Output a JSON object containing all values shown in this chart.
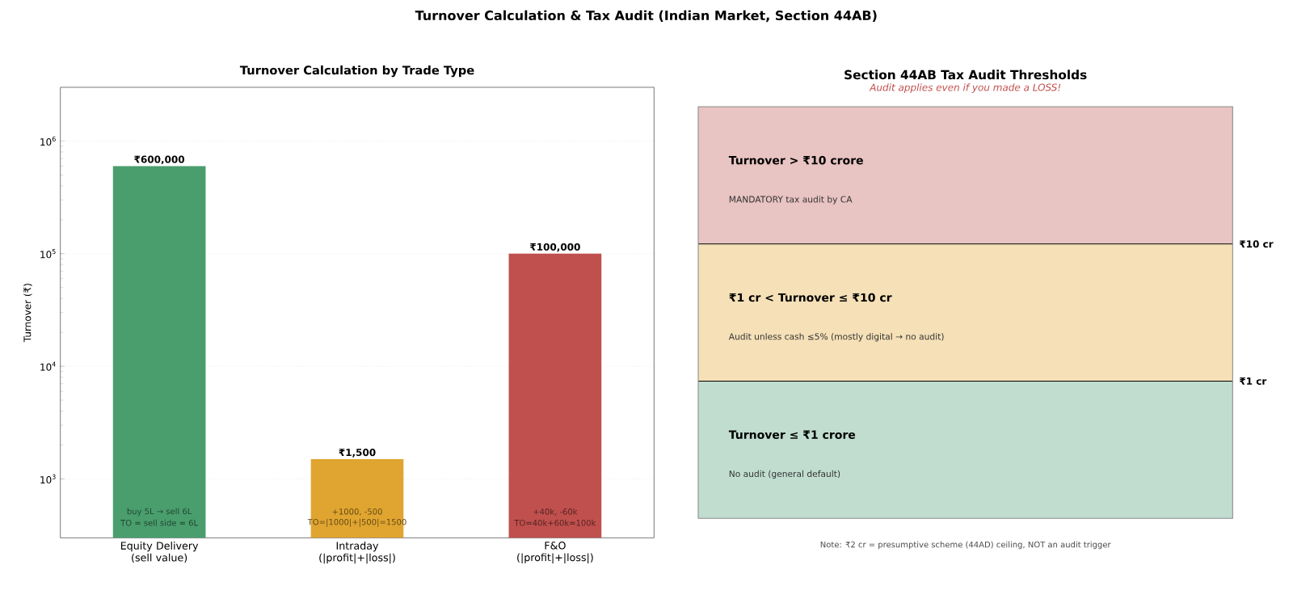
{
  "chart_data": [
    {
      "type": "bar",
      "title": "Turnover Calculation & Tax Audit (Indian Market, Section 44AB)",
      "subtitle": "Turnover Calculation by Trade Type",
      "ylabel": "Turnover (₹)",
      "categories": [
        "Equity Delivery (sell value)",
        "Intraday (|profit|+|loss|)",
        "F&O (|profit|+|loss|)"
      ],
      "values": [
        600000,
        1500,
        100000
      ],
      "colors": [
        "#4a9e6e",
        "#e0a530",
        "#c0504d"
      ],
      "value_labels": [
        "₹600,000",
        "₹1,500",
        "₹100,000"
      ],
      "annotations": [
        "buy 5L → sell 6L",
        "TO = sell side = 6L",
        "+1000, -500",
        "TO=|1000|+|500|=1500",
        "+40k, -60k",
        "TO=40k+60k=100k"
      ],
      "log": true,
      "ylim": [
        300,
        3000000
      ],
      "yticks": [
        {
          "value": 1000,
          "label": "10$^{3}$"
        },
        {
          "value": 10000,
          "label": "10$^{4}$"
        },
        {
          "value": 100000,
          "label": "10$^{5}$"
        },
        {
          "value": 1000000,
          "label": "10$^{6}$"
        }
      ],
      "grid": "y"
    },
    {
      "type": "other",
      "title": "Section 44AB Tax Audit Thresholds",
      "subtitle": "Audit applies even if you made a LOSS!",
      "categories": [
        "Turnover > ₹10 crore",
        "₹1 cr < Turnover ≤ ₹10 cr",
        "Turnover ≤ ₹1 crore"
      ],
      "colors": [
        "#e8c4c2",
        "#f5e0b7",
        "#c0ddd0"
      ],
      "annotations": [
        "MANDATORY tax audit by CA",
        "Audit unless cash ≤5% (mostly digital → no audit)",
        "No audit (general default)",
        "₹10 cr",
        "₹1 cr",
        "Note: ₹2 cr = presumptive scheme (44AD) ceiling, NOT an audit trigger"
      ]
    }
  ]
}
